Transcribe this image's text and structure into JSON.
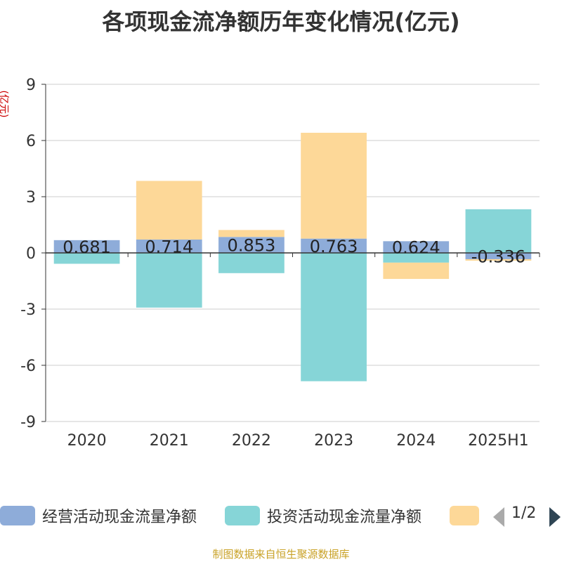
{
  "chart_data": {
    "type": "bar",
    "title": "各项现金流净额历年变化情况(亿元)",
    "ylabel": "(亿元)",
    "categories": [
      "2020",
      "2021",
      "2022",
      "2023",
      "2024",
      "2025H1"
    ],
    "ylim": [
      -9,
      9
    ],
    "yticks": [
      "9",
      "6",
      "3",
      "0",
      "-3",
      "-6",
      "-9"
    ],
    "stacked": true,
    "grid": true,
    "legend_position": "bottom",
    "series": [
      {
        "name": "经营活动现金流量净额",
        "color": "#8eacd9",
        "values": [
          0.681,
          0.714,
          0.853,
          0.763,
          0.624,
          -0.336
        ],
        "labels": [
          "0.681",
          "0.714",
          "0.853",
          "0.763",
          "0.624",
          "-0.336"
        ]
      },
      {
        "name": "投资活动现金流量净额",
        "color": "#86d5d7",
        "values": [
          -0.58,
          -2.92,
          -1.08,
          -6.85,
          -0.52,
          2.33
        ]
      },
      {
        "color": "#fdd898",
        "values": [
          0.0,
          3.13,
          0.37,
          5.65,
          -0.87,
          -0.08
        ]
      }
    ]
  },
  "legend": {
    "pager": "1/2"
  },
  "source": "制图数据来自恒生聚源数据库"
}
